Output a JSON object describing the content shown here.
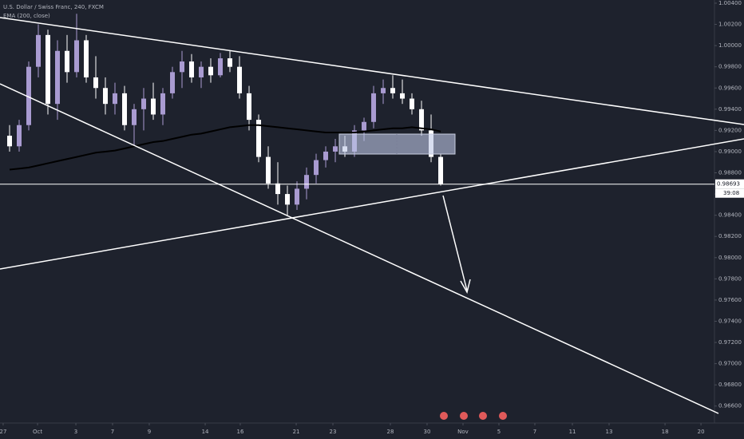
{
  "chart_data": {
    "type": "candlestick",
    "title": "U.S. Dollar / Swiss Franc, 240, FXCM",
    "indicator": "EMA (200, close)",
    "x": [
      1,
      2,
      3,
      4,
      5,
      6,
      7,
      8,
      9,
      10,
      11,
      12,
      13,
      14,
      15,
      16,
      17,
      18,
      19,
      20,
      21,
      22,
      23,
      24,
      25,
      26,
      27,
      28,
      29,
      30,
      31,
      32,
      33,
      34,
      35,
      36,
      37,
      38,
      39,
      40,
      41,
      42,
      43,
      44,
      45,
      46
    ],
    "open": [
      0.9915,
      0.9905,
      0.9925,
      0.998,
      1.001,
      0.9945,
      0.9995,
      0.9975,
      1.0005,
      0.997,
      0.996,
      0.9945,
      0.9955,
      0.9925,
      0.994,
      0.995,
      0.9935,
      0.9955,
      0.9975,
      0.9985,
      0.997,
      0.998,
      0.9972,
      0.9988,
      0.998,
      0.9955,
      0.993,
      0.9895,
      0.987,
      0.986,
      0.985,
      0.9865,
      0.9878,
      0.9892,
      0.99,
      0.9905,
      0.99,
      0.992,
      0.9928,
      0.9955,
      0.996,
      0.9955,
      0.995,
      0.994,
      0.992,
      0.9895
    ],
    "high": [
      0.9925,
      0.993,
      0.9985,
      1.002,
      1.0015,
      1.0005,
      1.001,
      1.003,
      1.001,
      0.999,
      0.997,
      0.9965,
      0.9962,
      0.9945,
      0.996,
      0.9965,
      0.996,
      0.998,
      0.9995,
      0.9992,
      0.9985,
      0.9988,
      0.9993,
      0.9995,
      0.999,
      0.9962,
      0.9935,
      0.9905,
      0.989,
      0.9868,
      0.9872,
      0.9885,
      0.9898,
      0.9905,
      0.9912,
      0.9915,
      0.9925,
      0.9932,
      0.9962,
      0.9968,
      0.9972,
      0.9968,
      0.9955,
      0.9948,
      0.9935,
      0.9898
    ],
    "low": [
      0.99,
      0.99,
      0.992,
      0.997,
      0.9935,
      0.993,
      0.9965,
      0.997,
      0.9965,
      0.995,
      0.9935,
      0.9935,
      0.992,
      0.9905,
      0.992,
      0.993,
      0.9925,
      0.995,
      0.996,
      0.9965,
      0.996,
      0.9965,
      0.997,
      0.9975,
      0.995,
      0.992,
      0.989,
      0.9865,
      0.985,
      0.984,
      0.9845,
      0.9855,
      0.987,
      0.9885,
      0.989,
      0.9895,
      0.9895,
      0.991,
      0.9922,
      0.9945,
      0.995,
      0.9945,
      0.9935,
      0.9915,
      0.989,
      0.9868
    ],
    "close": [
      0.9905,
      0.9925,
      0.998,
      1.001,
      0.9945,
      0.9995,
      0.9975,
      1.0005,
      0.997,
      0.996,
      0.9945,
      0.9955,
      0.9925,
      0.994,
      0.995,
      0.9935,
      0.9955,
      0.9975,
      0.9985,
      0.997,
      0.998,
      0.9972,
      0.9988,
      0.998,
      0.9955,
      0.993,
      0.9895,
      0.987,
      0.986,
      0.985,
      0.9865,
      0.9878,
      0.9892,
      0.99,
      0.9905,
      0.99,
      0.992,
      0.9928,
      0.9955,
      0.996,
      0.9955,
      0.995,
      0.994,
      0.992,
      0.9895,
      0.98693
    ],
    "up_color": "#a99bd1",
    "down_color": "#ffffff",
    "ema": {
      "color": "#000000",
      "values": [
        0.9883,
        0.9884,
        0.9885,
        0.9887,
        0.9889,
        0.9891,
        0.9893,
        0.9895,
        0.9897,
        0.9899,
        0.99,
        0.9901,
        0.9903,
        0.9905,
        0.9907,
        0.9909,
        0.991,
        0.9912,
        0.9914,
        0.9916,
        0.9917,
        0.9919,
        0.9921,
        0.9923,
        0.9924,
        0.9925,
        0.9925,
        0.9924,
        0.9923,
        0.9922,
        0.9921,
        0.992,
        0.9919,
        0.9918,
        0.9918,
        0.9918,
        0.9918,
        0.9919,
        0.992,
        0.9921,
        0.9922,
        0.9922,
        0.9923,
        0.9922,
        0.9921,
        0.9919
      ]
    },
    "xlim": [
      0,
      74.33
    ],
    "xticks": [
      {
        "value": 0.33,
        "label": "27"
      },
      {
        "value": 3.92,
        "label": "Oct"
      },
      {
        "value": 7.92,
        "label": "3"
      },
      {
        "value": 11.75,
        "label": "7"
      },
      {
        "value": 15.58,
        "label": "9"
      },
      {
        "value": 21.42,
        "label": "14"
      },
      {
        "value": 25.08,
        "label": "16"
      },
      {
        "value": 30.92,
        "label": "21"
      },
      {
        "value": 34.75,
        "label": "23"
      },
      {
        "value": 40.75,
        "label": "28"
      },
      {
        "value": 44.58,
        "label": "30"
      },
      {
        "value": 48.33,
        "label": "Nov"
      },
      {
        "value": 52.08,
        "label": "5"
      },
      {
        "value": 55.83,
        "label": "7"
      },
      {
        "value": 59.75,
        "label": "11"
      },
      {
        "value": 63.58,
        "label": "13"
      },
      {
        "value": 69.42,
        "label": "18"
      },
      {
        "value": 73.17,
        "label": "20"
      }
    ],
    "ylim": [
      0.9644,
      1.0043
    ],
    "yticks": [
      {
        "value": 0.966,
        "label": "0.96600"
      },
      {
        "value": 0.968,
        "label": "0.96800"
      },
      {
        "value": 0.97,
        "label": "0.97000"
      },
      {
        "value": 0.972,
        "label": "0.97200"
      },
      {
        "value": 0.974,
        "label": "0.97400"
      },
      {
        "value": 0.976,
        "label": "0.97600"
      },
      {
        "value": 0.978,
        "label": "0.97800"
      },
      {
        "value": 0.98,
        "label": "0.98000"
      },
      {
        "value": 0.982,
        "label": "0.98200"
      },
      {
        "value": 0.984,
        "label": "0.98400"
      },
      {
        "value": 0.986,
        "label": "0.98600"
      },
      {
        "value": 0.988,
        "label": "0.98800"
      },
      {
        "value": 0.99,
        "label": "0.99000"
      },
      {
        "value": 0.992,
        "label": "0.99200"
      },
      {
        "value": 0.994,
        "label": "0.99400"
      },
      {
        "value": 0.996,
        "label": "0.99600"
      },
      {
        "value": 0.998,
        "label": "0.99800"
      },
      {
        "value": 1.0,
        "label": "1.00000"
      },
      {
        "value": 1.002,
        "label": "1.00200"
      },
      {
        "value": 1.004,
        "label": "1.00400"
      }
    ],
    "grid": false,
    "last_price": 0.98693,
    "countdown": "39:08"
  }
}
